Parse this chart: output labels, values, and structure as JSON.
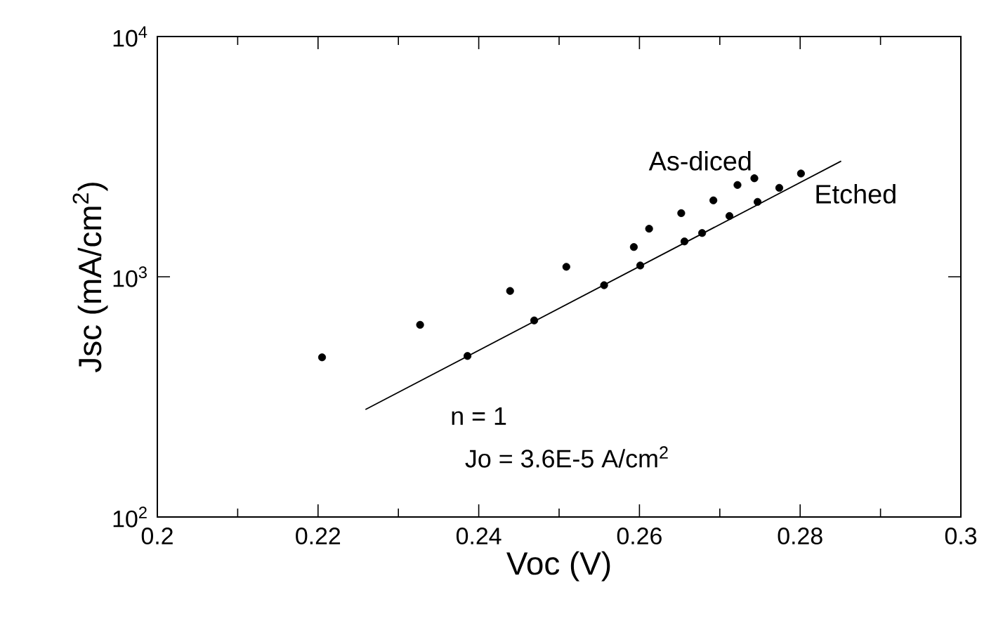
{
  "chart_data": {
    "type": "scatter",
    "xlabel": "Voc (V)",
    "ylabel": "Jsc (mA/cm$^{2}$)",
    "series": [
      {
        "name": "As-diced",
        "color": "#000000",
        "x": [
          0.2205,
          0.2327,
          0.2439,
          0.2509,
          0.2593,
          0.2612,
          0.2652,
          0.2692,
          0.2722,
          0.2743
        ],
        "values": [
          462,
          631,
          873,
          1100,
          1330,
          1585,
          1840,
          2080,
          2410,
          2570
        ]
      },
      {
        "name": "Etched",
        "color": "#000000",
        "x": [
          0.2386,
          0.2469,
          0.2556,
          0.2601,
          0.2656,
          0.2678,
          0.2712,
          0.2747,
          0.2774,
          0.2801
        ],
        "values": [
          468,
          658,
          922,
          1114,
          1403,
          1521,
          1790,
          2050,
          2345,
          2690
        ]
      },
      {
        "type": "line",
        "color": "#000000",
        "marker": "none",
        "x": [
          0.2259,
          0.2851
        ],
        "values": [
          280,
          3030
        ]
      }
    ],
    "annotations": [
      "n = 1",
      "Jo = 3.6E-5 A/cm$^{2}$"
    ],
    "marker": "circle",
    "log": "y",
    "grid": false,
    "legend": false,
    "xlim": [
      0.2,
      0.3
    ],
    "xticks": [
      0.2,
      0.22,
      0.24,
      0.26,
      0.28,
      0.3
    ],
    "ylim": [
      100,
      10000
    ],
    "yticks": [
      {
        "value": 100,
        "label": "10$^{2}$"
      },
      {
        "value": 1000,
        "label": "10$^{3}$"
      },
      {
        "value": 10000,
        "label": "10$^{4}$"
      }
    ]
  }
}
